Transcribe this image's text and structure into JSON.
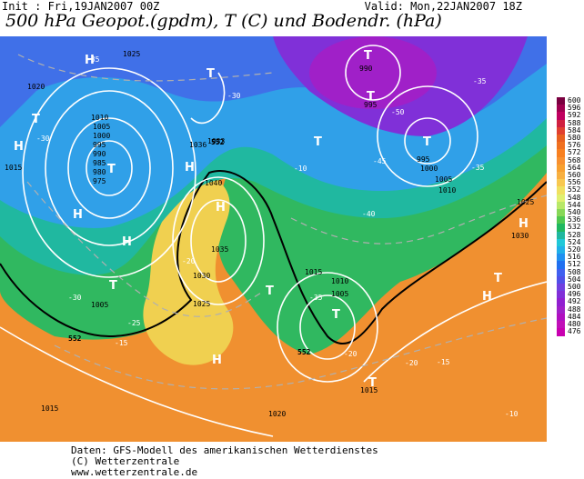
{
  "header": {
    "init": "Init : Fri,19JAN2007 00Z",
    "valid": "Valid: Mon,22JAN2007 18Z",
    "title": "500 hPa Geopot.(gpdm), T (C) und Bodendr. (hPa)"
  },
  "footer": {
    "line1": "Daten: GFS-Modell des amerikanischen Wetterdienstes",
    "line2": "(C) Wetterzentrale",
    "line3": "www.wetterzentrale.de"
  },
  "legend": {
    "values": [
      "600",
      "596",
      "592",
      "588",
      "584",
      "580",
      "576",
      "572",
      "568",
      "564",
      "560",
      "556",
      "552",
      "548",
      "544",
      "540",
      "536",
      "532",
      "528",
      "524",
      "520",
      "516",
      "512",
      "508",
      "504",
      "500",
      "496",
      "492",
      "488",
      "484",
      "480",
      "476"
    ],
    "colors": [
      "#7a0040",
      "#a00050",
      "#c00060",
      "#d02040",
      "#e04030",
      "#e86020",
      "#f07020",
      "#f88020",
      "#f89030",
      "#f8a030",
      "#f8b040",
      "#f8c850",
      "#f0e060",
      "#e0f070",
      "#b8e868",
      "#88d858",
      "#50c850",
      "#20b860",
      "#20b8a0",
      "#20c8d8",
      "#20b0e8",
      "#2090f0",
      "#2070f0",
      "#4060f0",
      "#5050e8",
      "#7040e0",
      "#8030d8",
      "#9020d0",
      "#a020c8",
      "#b010c0",
      "#c010b8",
      "#c800b0"
    ]
  },
  "map": {
    "pressure_labels": [
      "1025",
      "1020",
      "1015",
      "1010",
      "1005",
      "1000",
      "995",
      "990",
      "985",
      "980",
      "975",
      "1040",
      "1035",
      "1030",
      "1036",
      "1033"
    ],
    "temp_labels": [
      "-50",
      "-45",
      "-40",
      "-35",
      "-30",
      "-25",
      "-20",
      "-15",
      "-10"
    ],
    "gpdm_labels": [
      "552",
      "552",
      "552"
    ],
    "highs": [
      "H",
      "H",
      "H",
      "H",
      "H",
      "H",
      "H",
      "H",
      "H"
    ],
    "lows": [
      "T",
      "T",
      "T",
      "T",
      "T",
      "T",
      "T",
      "T",
      "T",
      "T",
      "T",
      "T"
    ]
  }
}
